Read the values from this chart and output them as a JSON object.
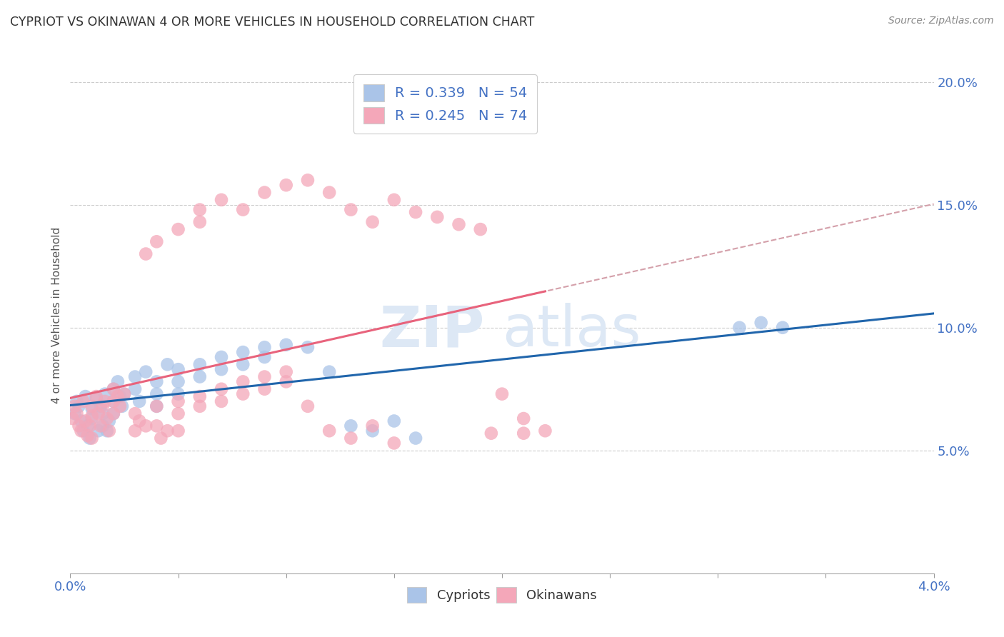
{
  "title": "CYPRIOT VS OKINAWAN 4 OR MORE VEHICLES IN HOUSEHOLD CORRELATION CHART",
  "source_text": "Source: ZipAtlas.com",
  "ylabel": "4 or more Vehicles in Household",
  "xlabel": "",
  "watermark_left": "ZIP",
  "watermark_right": "atlas",
  "xlim": [
    0.0,
    0.04
  ],
  "ylim": [
    0.0,
    0.21
  ],
  "x_ticks": [
    0.0,
    0.005,
    0.01,
    0.015,
    0.02,
    0.025,
    0.03,
    0.035,
    0.04
  ],
  "x_tick_labels": [
    "0.0%",
    "",
    "",
    "",
    "",
    "",
    "",
    "",
    "4.0%"
  ],
  "y_ticks_right": [
    0.05,
    0.1,
    0.15,
    0.2
  ],
  "y_tick_labels_right": [
    "5.0%",
    "10.0%",
    "15.0%",
    "20.0%"
  ],
  "cypriot_color": "#aac4e8",
  "okinawan_color": "#f4a7b9",
  "cypriot_line_color": "#2166ac",
  "okinawan_line_color": "#e8637c",
  "dashed_line_color": "#d4a0aa",
  "legend_label_cypriot": "Cypriots",
  "legend_label_okinawan": "Okinawans",
  "title_color": "#333333",
  "axis_label_color": "#555555",
  "tick_label_color": "#4472c4",
  "background_color": "#ffffff",
  "grid_color": "#cccccc",
  "cypriot_x": [
    0.0002,
    0.0003,
    0.0004,
    0.0005,
    0.0006,
    0.0007,
    0.0008,
    0.0009,
    0.001,
    0.001,
    0.0012,
    0.0013,
    0.0014,
    0.0015,
    0.0015,
    0.0016,
    0.0017,
    0.0018,
    0.002,
    0.002,
    0.002,
    0.0022,
    0.0023,
    0.0024,
    0.0025,
    0.003,
    0.003,
    0.0032,
    0.0035,
    0.004,
    0.004,
    0.004,
    0.0045,
    0.005,
    0.005,
    0.005,
    0.006,
    0.006,
    0.007,
    0.007,
    0.008,
    0.008,
    0.009,
    0.009,
    0.01,
    0.011,
    0.012,
    0.013,
    0.014,
    0.015,
    0.016,
    0.031,
    0.032,
    0.033
  ],
  "cypriot_y": [
    0.065,
    0.07,
    0.068,
    0.062,
    0.058,
    0.072,
    0.06,
    0.055,
    0.067,
    0.063,
    0.071,
    0.058,
    0.068,
    0.065,
    0.06,
    0.073,
    0.058,
    0.062,
    0.075,
    0.07,
    0.065,
    0.078,
    0.072,
    0.068,
    0.073,
    0.08,
    0.075,
    0.07,
    0.082,
    0.068,
    0.073,
    0.078,
    0.085,
    0.083,
    0.078,
    0.073,
    0.085,
    0.08,
    0.088,
    0.083,
    0.09,
    0.085,
    0.092,
    0.088,
    0.093,
    0.092,
    0.082,
    0.06,
    0.058,
    0.062,
    0.055,
    0.1,
    0.102,
    0.1
  ],
  "okinawan_x": [
    0.0001,
    0.0002,
    0.0003,
    0.0004,
    0.0005,
    0.0006,
    0.0007,
    0.0008,
    0.0009,
    0.001,
    0.001,
    0.001,
    0.0012,
    0.0013,
    0.0014,
    0.0015,
    0.0016,
    0.0017,
    0.0018,
    0.002,
    0.002,
    0.002,
    0.0022,
    0.0023,
    0.0025,
    0.003,
    0.003,
    0.0032,
    0.0035,
    0.004,
    0.004,
    0.0042,
    0.0045,
    0.005,
    0.005,
    0.005,
    0.006,
    0.006,
    0.007,
    0.007,
    0.008,
    0.008,
    0.009,
    0.009,
    0.01,
    0.01,
    0.011,
    0.012,
    0.013,
    0.014,
    0.015,
    0.0035,
    0.004,
    0.005,
    0.006,
    0.006,
    0.007,
    0.008,
    0.009,
    0.01,
    0.011,
    0.012,
    0.013,
    0.014,
    0.015,
    0.016,
    0.017,
    0.018,
    0.019,
    0.0195,
    0.02,
    0.021,
    0.021,
    0.022
  ],
  "okinawan_y": [
    0.063,
    0.068,
    0.065,
    0.06,
    0.058,
    0.07,
    0.062,
    0.056,
    0.06,
    0.064,
    0.068,
    0.055,
    0.072,
    0.065,
    0.06,
    0.068,
    0.07,
    0.063,
    0.058,
    0.075,
    0.07,
    0.065,
    0.072,
    0.068,
    0.073,
    0.065,
    0.058,
    0.062,
    0.06,
    0.068,
    0.06,
    0.055,
    0.058,
    0.07,
    0.065,
    0.058,
    0.072,
    0.068,
    0.075,
    0.07,
    0.078,
    0.073,
    0.08,
    0.075,
    0.082,
    0.078,
    0.068,
    0.058,
    0.055,
    0.06,
    0.053,
    0.13,
    0.135,
    0.14,
    0.148,
    0.143,
    0.152,
    0.148,
    0.155,
    0.158,
    0.16,
    0.155,
    0.148,
    0.143,
    0.152,
    0.147,
    0.145,
    0.142,
    0.14,
    0.057,
    0.073,
    0.063,
    0.057,
    0.058
  ]
}
